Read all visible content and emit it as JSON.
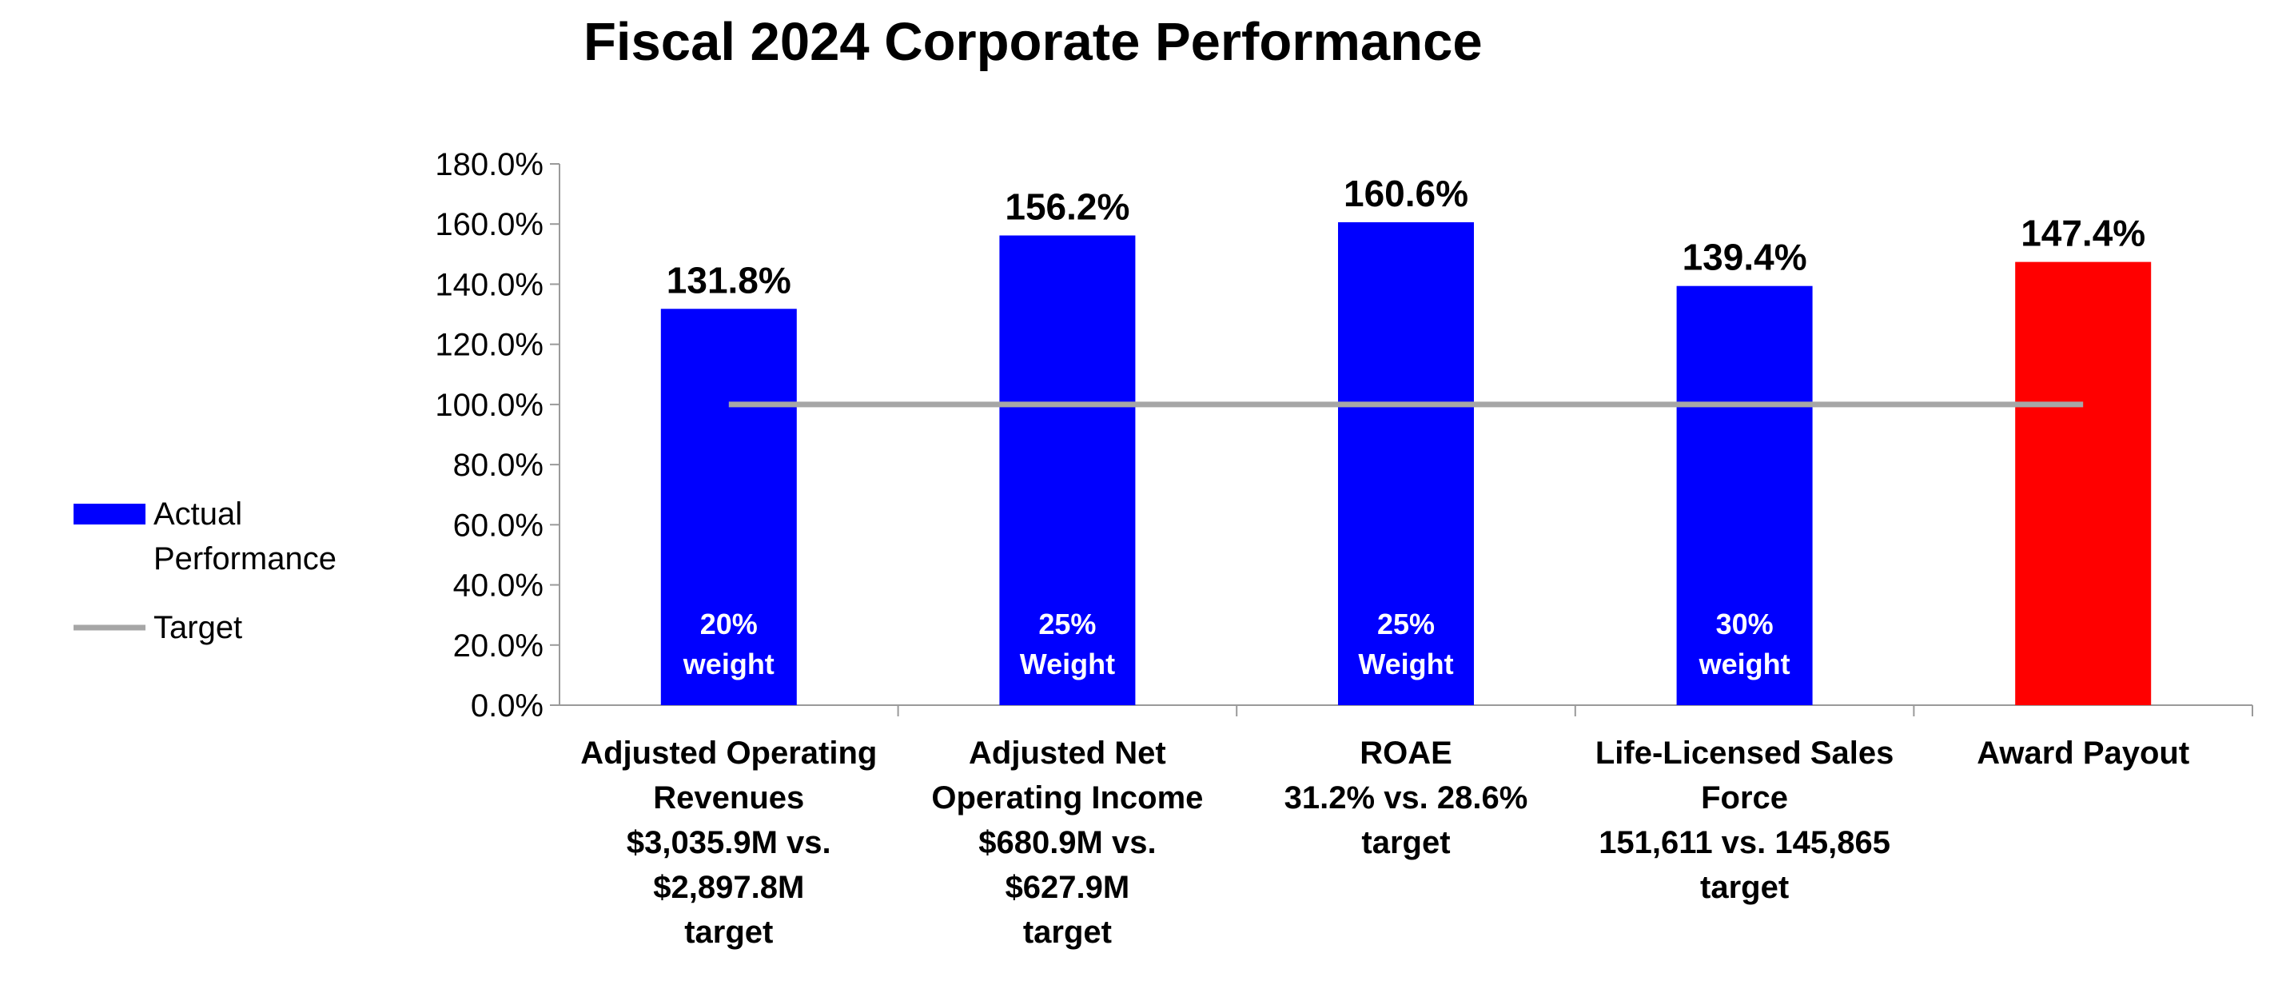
{
  "chart_data": {
    "type": "bar",
    "title": "Fiscal 2024 Corporate Performance",
    "ylim": [
      0,
      180
    ],
    "yticks": [
      0,
      20,
      40,
      60,
      80,
      100,
      120,
      140,
      160,
      180
    ],
    "ytick_labels": [
      "0.0%",
      "20.0%",
      "40.0%",
      "60.0%",
      "80.0%",
      "100.0%",
      "120.0%",
      "140.0%",
      "160.0%",
      "180.0%"
    ],
    "categories": [
      {
        "lines": [
          "Adjusted Operating",
          "Revenues",
          "$3,035.9M vs.",
          "$2,897.8M",
          "target"
        ]
      },
      {
        "lines": [
          "Adjusted Net",
          "Operating Income",
          "$680.9M vs.",
          "$627.9M",
          "target"
        ]
      },
      {
        "lines": [
          "ROAE",
          "31.2% vs. 28.6%",
          "target"
        ]
      },
      {
        "lines": [
          "Life-Licensed Sales",
          "Force",
          "151,611 vs. 145,865",
          "target"
        ]
      },
      {
        "lines": [
          "Award Payout"
        ]
      }
    ],
    "values": [
      131.8,
      156.2,
      160.6,
      139.4,
      147.4
    ],
    "value_labels": [
      "131.8%",
      "156.2%",
      "160.6%",
      "139.4%",
      "147.4%"
    ],
    "weights": [
      [
        "20%",
        "weight"
      ],
      [
        "25%",
        "Weight"
      ],
      [
        "25%",
        "Weight"
      ],
      [
        "30%",
        "weight"
      ],
      null
    ],
    "bar_colors": [
      "#0000FF",
      "#0000FF",
      "#0000FF",
      "#0000FF",
      "#FF0000"
    ],
    "target": {
      "name": "Target",
      "value": 100,
      "color": "#A6A6A6"
    },
    "legend": {
      "position": "left",
      "entries": [
        {
          "lines": [
            "Actual",
            "Performance"
          ],
          "color": "#0000FF",
          "kind": "bar"
        },
        {
          "lines": [
            "Target"
          ],
          "color": "#A6A6A6",
          "kind": "line"
        }
      ]
    }
  }
}
